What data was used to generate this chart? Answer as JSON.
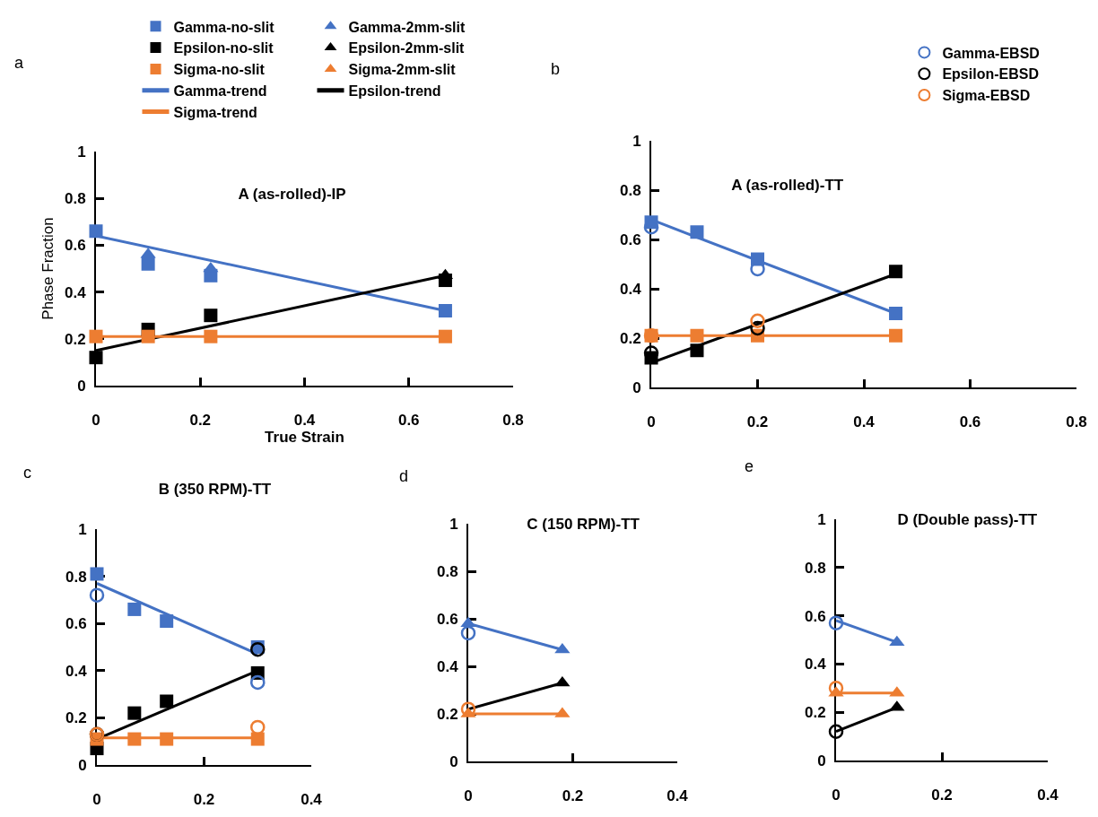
{
  "chart_data": [
    {
      "type": "scatter",
      "title": "A (as-rolled)-IP",
      "xlabel": "True Strain",
      "ylabel": "Phase Fraction",
      "annotations": [
        "a"
      ],
      "legend": "top",
      "xlim": [
        0,
        0.8
      ],
      "xticks": [
        0,
        0.2,
        0.4,
        0.6,
        0.8
      ],
      "ylim": [
        0,
        1
      ],
      "yticks": [
        0,
        0.2,
        0.4,
        0.6,
        0.8,
        1
      ],
      "series": [
        {
          "name": "Gamma-no-slit",
          "color": "#4472c4",
          "marker": "square",
          "x": [
            0,
            0.1,
            0.22,
            0.67
          ],
          "values": [
            0.66,
            0.52,
            0.47,
            0.32
          ]
        },
        {
          "name": "Gamma-2mm-slit",
          "color": "#4472c4",
          "marker": "triangle",
          "x": [
            0.1,
            0.22
          ],
          "values": [
            0.56,
            0.5
          ]
        },
        {
          "name": "Epsilon-no-slit",
          "color": "#000000",
          "marker": "square",
          "x": [
            0,
            0.1,
            0.22,
            0.67
          ],
          "values": [
            0.12,
            0.24,
            0.3,
            0.45
          ]
        },
        {
          "name": "Epsilon-2mm-slit",
          "color": "#000000",
          "marker": "triangle",
          "x": [
            0.67
          ],
          "values": [
            0.47
          ]
        },
        {
          "name": "Sigma-no-slit",
          "color": "#ed7d31",
          "marker": "square",
          "x": [
            0,
            0.1,
            0.22,
            0.67
          ],
          "values": [
            0.21,
            0.21,
            0.21,
            0.21
          ]
        },
        {
          "name": "Sigma-2mm-slit",
          "color": "#ed7d31",
          "marker": "triangle"
        },
        {
          "name": "Gamma-trend",
          "type": "line",
          "color": "#4472c4",
          "x": [
            0,
            0.67
          ],
          "values": [
            0.64,
            0.32
          ]
        },
        {
          "name": "Epsilon-trend",
          "type": "line",
          "color": "#000000",
          "x": [
            0,
            0.67
          ],
          "values": [
            0.15,
            0.47
          ]
        },
        {
          "name": "Sigma-trend",
          "type": "line",
          "color": "#ed7d31",
          "x": [
            0,
            0.67
          ],
          "values": [
            0.21,
            0.21
          ]
        }
      ]
    },
    {
      "type": "scatter",
      "title": "A (as-rolled)-TT",
      "annotations": [
        "b"
      ],
      "legend": "top right",
      "xlim": [
        0,
        0.8
      ],
      "xticks": [
        0,
        0.2,
        0.4,
        0.6,
        0.8
      ],
      "ylim": [
        0,
        1
      ],
      "yticks": [
        0,
        0.2,
        0.4,
        0.6,
        0.8,
        1
      ],
      "series": [
        {
          "color": "#4472c4",
          "marker": "square",
          "x": [
            0,
            0.086,
            0.2,
            0.46
          ],
          "values": [
            0.67,
            0.63,
            0.52,
            0.3
          ]
        },
        {
          "color": "#000000",
          "marker": "square",
          "x": [
            0,
            0.086,
            0.46
          ],
          "values": [
            0.12,
            0.15,
            0.47
          ]
        },
        {
          "color": "#ed7d31",
          "marker": "square",
          "x": [
            0,
            0.086,
            0.2,
            0.46
          ],
          "values": [
            0.21,
            0.21,
            0.21,
            0.21
          ]
        },
        {
          "type": "line",
          "color": "#4472c4",
          "x": [
            0,
            0.46
          ],
          "values": [
            0.68,
            0.3
          ]
        },
        {
          "type": "line",
          "color": "#000000",
          "x": [
            0,
            0.46
          ],
          "values": [
            0.1,
            0.46
          ]
        },
        {
          "type": "line",
          "color": "#ed7d31",
          "x": [
            0,
            0.46
          ],
          "values": [
            0.21,
            0.21
          ]
        },
        {
          "name": "Gamma-EBSD",
          "color": "#4472c4",
          "marker": "circle",
          "x": [
            0,
            0.2
          ],
          "values": [
            0.65,
            0.48
          ]
        },
        {
          "name": "Epsilon-EBSD",
          "color": "#000000",
          "marker": "circle",
          "x": [
            0,
            0.2
          ],
          "values": [
            0.14,
            0.24
          ]
        },
        {
          "name": "Sigma-EBSD",
          "color": "#ed7d31",
          "marker": "circle",
          "x": [
            0,
            0.2
          ],
          "values": [
            0.21,
            0.27
          ]
        }
      ]
    },
    {
      "type": "scatter",
      "title": "B (350 RPM)-TT",
      "annotations": [
        "c"
      ],
      "xlim": [
        0,
        0.4
      ],
      "xticks": [
        0,
        0.2,
        0.4
      ],
      "ylim": [
        0,
        1
      ],
      "yticks": [
        0,
        0.2,
        0.4,
        0.6,
        0.8,
        1
      ],
      "series": [
        {
          "color": "#4472c4",
          "marker": "square",
          "x": [
            0,
            0.07,
            0.13,
            0.3
          ],
          "values": [
            0.81,
            0.66,
            0.61,
            0.5
          ]
        },
        {
          "color": "#000000",
          "marker": "square",
          "x": [
            0,
            0.07,
            0.13,
            0.3
          ],
          "values": [
            0.07,
            0.22,
            0.27,
            0.39
          ]
        },
        {
          "color": "#ed7d31",
          "marker": "square",
          "x": [
            0,
            0.07,
            0.13,
            0.3
          ],
          "values": [
            0.11,
            0.11,
            0.11,
            0.11
          ]
        },
        {
          "type": "line",
          "color": "#4472c4",
          "x": [
            0,
            0.3
          ],
          "values": [
            0.77,
            0.47
          ]
        },
        {
          "type": "line",
          "color": "#000000",
          "x": [
            0,
            0.3
          ],
          "values": [
            0.11,
            0.4
          ]
        },
        {
          "type": "line",
          "color": "#ed7d31",
          "x": [
            0,
            0.3
          ],
          "values": [
            0.115,
            0.115
          ]
        },
        {
          "color": "#4472c4",
          "marker": "circle",
          "x": [
            0,
            0.3
          ],
          "values": [
            0.72,
            0.35
          ]
        },
        {
          "color": "#000000",
          "marker": "circle",
          "x": [
            0,
            0.3
          ],
          "values": [
            0.13,
            0.49
          ]
        },
        {
          "color": "#ed7d31",
          "marker": "circle",
          "x": [
            0,
            0.3
          ],
          "values": [
            0.13,
            0.16
          ]
        }
      ]
    },
    {
      "type": "scatter",
      "title": "C (150 RPM)-TT",
      "annotations": [
        "d"
      ],
      "xlim": [
        0,
        0.4
      ],
      "xticks": [
        0,
        0.2,
        0.4
      ],
      "ylim": [
        0,
        1
      ],
      "yticks": [
        0,
        0.2,
        0.4,
        0.6,
        0.8,
        1
      ],
      "series": [
        {
          "type": "line",
          "color": "#4472c4",
          "x": [
            0,
            0.18
          ],
          "values": [
            0.58,
            0.47
          ]
        },
        {
          "type": "line",
          "color": "#000000",
          "x": [
            0,
            0.18
          ],
          "values": [
            0.22,
            0.33
          ]
        },
        {
          "type": "line",
          "color": "#ed7d31",
          "x": [
            0,
            0.18
          ],
          "values": [
            0.2,
            0.2
          ]
        },
        {
          "color": "#4472c4",
          "marker": "triangle",
          "x": [
            0,
            0.18
          ],
          "values": [
            0.58,
            0.47
          ]
        },
        {
          "color": "#000000",
          "marker": "triangle",
          "x": [
            0.18
          ],
          "values": [
            0.33
          ]
        },
        {
          "color": "#ed7d31",
          "marker": "triangle",
          "x": [
            0,
            0.18
          ],
          "values": [
            0.2,
            0.2
          ]
        },
        {
          "color": "#4472c4",
          "marker": "circle",
          "x": [
            0
          ],
          "values": [
            0.54
          ]
        },
        {
          "color": "#ed7d31",
          "marker": "circle",
          "x": [
            0
          ],
          "values": [
            0.22
          ]
        }
      ]
    },
    {
      "type": "scatter",
      "title": "D (Double pass)-TT",
      "annotations": [
        "e"
      ],
      "xlim": [
        0,
        0.4
      ],
      "xticks": [
        0,
        0.2,
        0.4
      ],
      "ylim": [
        0,
        1
      ],
      "yticks": [
        0,
        0.2,
        0.4,
        0.6,
        0.8,
        1
      ],
      "series": [
        {
          "type": "line",
          "color": "#4472c4",
          "x": [
            0,
            0.115
          ],
          "values": [
            0.58,
            0.49
          ]
        },
        {
          "type": "line",
          "color": "#000000",
          "x": [
            0,
            0.115
          ],
          "values": [
            0.12,
            0.22
          ]
        },
        {
          "type": "line",
          "color": "#ed7d31",
          "x": [
            0,
            0.115
          ],
          "values": [
            0.28,
            0.28
          ]
        },
        {
          "color": "#4472c4",
          "marker": "triangle",
          "x": [
            0.115
          ],
          "values": [
            0.49
          ]
        },
        {
          "color": "#000000",
          "marker": "triangle",
          "x": [
            0.115
          ],
          "values": [
            0.22
          ]
        },
        {
          "color": "#ed7d31",
          "marker": "triangle",
          "x": [
            0,
            0.115
          ],
          "values": [
            0.28,
            0.28
          ]
        },
        {
          "color": "#4472c4",
          "marker": "circle",
          "x": [
            0
          ],
          "values": [
            0.57
          ]
        },
        {
          "color": "#000000",
          "marker": "circle",
          "x": [
            0
          ],
          "values": [
            0.12
          ]
        },
        {
          "color": "#ed7d31",
          "marker": "circle",
          "x": [
            0
          ],
          "values": [
            0.3
          ]
        }
      ]
    }
  ]
}
